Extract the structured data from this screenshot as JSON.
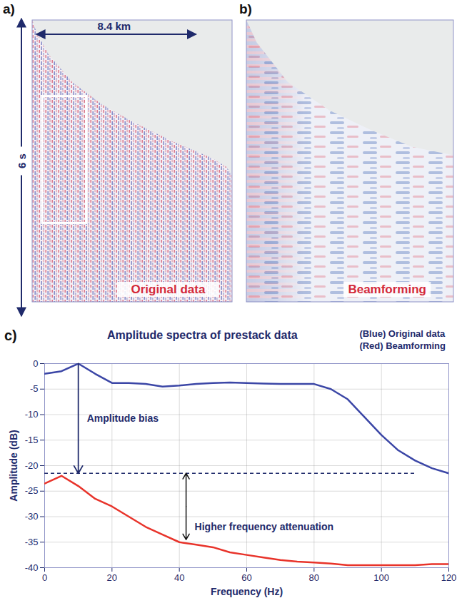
{
  "image_panels": [
    {
      "letter": "a)",
      "label": "Original data",
      "width_label": "8.4 km",
      "height_label": "6 s"
    },
    {
      "letter": "b)",
      "label": "Beamforming"
    }
  ],
  "chart_data": {
    "type": "line",
    "letter": "c)",
    "title": "Amplitude spectra of prestack data",
    "x_label": "Frequency (Hz)",
    "y_label": "Amplitude (dB)",
    "x": [
      0,
      5,
      10,
      15,
      20,
      25,
      30,
      35,
      40,
      45,
      50,
      55,
      60,
      65,
      70,
      75,
      80,
      85,
      90,
      95,
      100,
      105,
      110,
      115,
      120
    ],
    "series": [
      {
        "name": "(Blue) Original data",
        "color": "#3b46a6",
        "line_style": "solid",
        "values": [
          -2,
          -1.5,
          0,
          -2,
          -3.8,
          -3.8,
          -4,
          -4.5,
          -4.3,
          -4,
          -3.8,
          -3.7,
          -3.8,
          -3.9,
          -4,
          -4,
          -4,
          -5,
          -7,
          -10.5,
          -14,
          -17,
          -19,
          -20.5,
          -21.5
        ]
      },
      {
        "name": "(Red) Beamforming",
        "color": "#e8332a",
        "line_style": "solid",
        "values": [
          -23.5,
          -22,
          -24,
          -26.5,
          -28,
          -30,
          -32,
          -33.5,
          -35,
          -35.5,
          -36,
          -37,
          -37.5,
          -38,
          -38.5,
          -38.8,
          -39,
          -39.2,
          -39.5,
          -39.5,
          -39.5,
          -39.5,
          -39.5,
          -39.3,
          -39.3
        ]
      }
    ],
    "reference_line": {
      "value": -21.5,
      "xrange": [
        0,
        110
      ],
      "line_style": "dashed"
    },
    "annotations": [
      {
        "text": "Amplitude bias",
        "x": 10,
        "y1": 0,
        "y2": -21.5
      },
      {
        "text": "Higher frequency attenuation",
        "x": 42,
        "y1": -21.5,
        "y2": -34.5
      }
    ],
    "xlim": [
      0,
      120
    ],
    "xticks": [
      0,
      20,
      40,
      60,
      80,
      100,
      120
    ],
    "ylim": [
      -40,
      0
    ],
    "yticks": [
      -40,
      -35,
      -30,
      -25,
      -20,
      -15,
      -10,
      -5,
      0
    ],
    "grid": true,
    "legend": "top-right"
  }
}
